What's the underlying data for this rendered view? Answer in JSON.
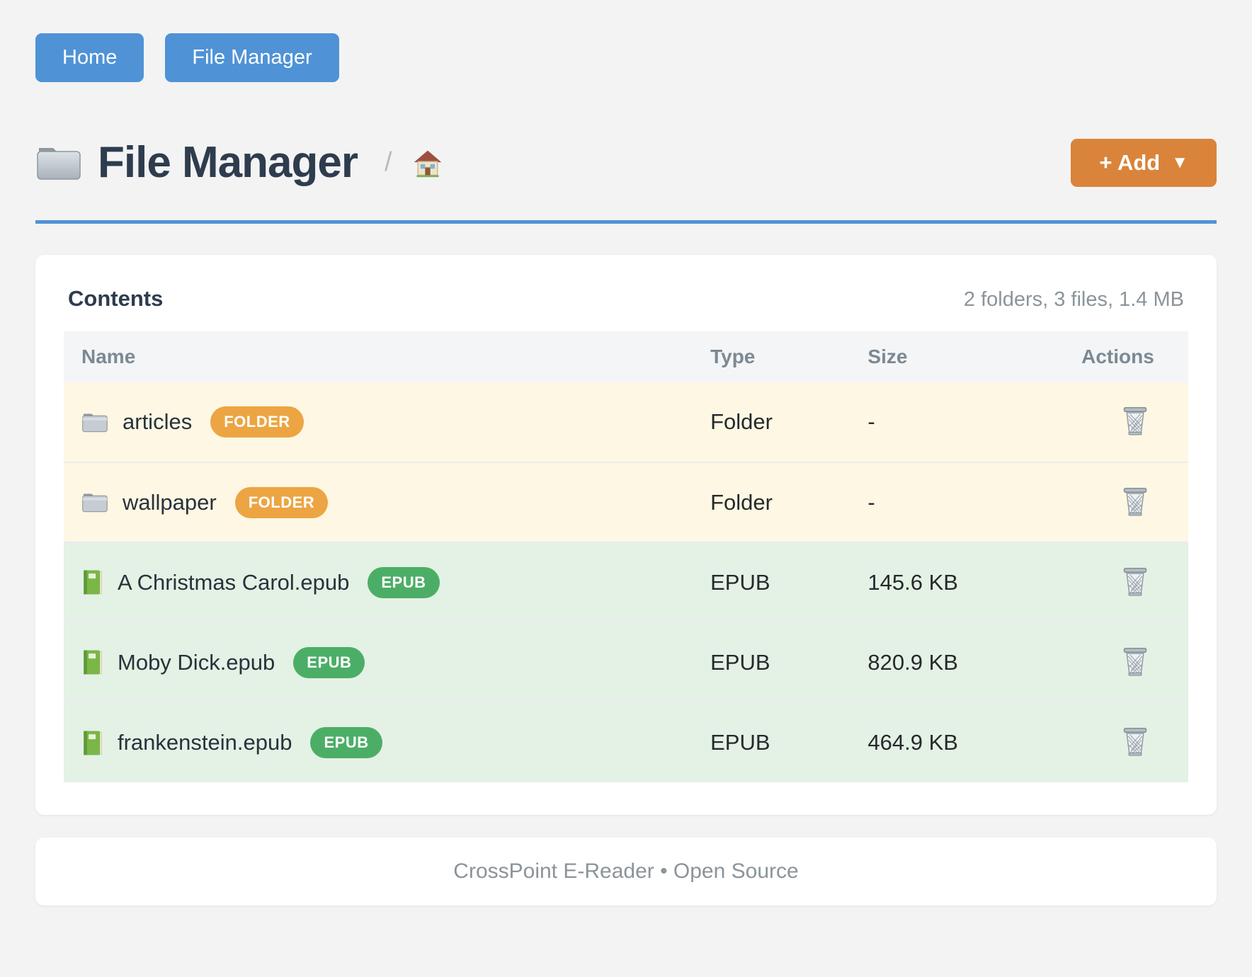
{
  "nav": {
    "buttons": [
      {
        "label": "Home"
      },
      {
        "label": "File Manager"
      }
    ]
  },
  "header": {
    "title": "File Manager",
    "title_icon": "folder-icon",
    "breadcrumb_separator": "/",
    "breadcrumb_home_icon": "house-icon",
    "add_button": {
      "label": "+ Add",
      "caret": "▼"
    }
  },
  "card": {
    "title": "Contents",
    "summary": "2 folders, 3 files, 1.4 MB",
    "table": {
      "columns": [
        "Name",
        "Type",
        "Size",
        "Actions"
      ],
      "rows": [
        {
          "kind": "folder",
          "icon": "folder-icon",
          "name": "articles",
          "badge": "FOLDER",
          "type": "Folder",
          "size": "-",
          "action_icon": "trash-icon"
        },
        {
          "kind": "folder",
          "icon": "folder-icon",
          "name": "wallpaper",
          "badge": "FOLDER",
          "type": "Folder",
          "size": "-",
          "action_icon": "trash-icon"
        },
        {
          "kind": "epub",
          "icon": "book-icon",
          "name": "A Christmas Carol.epub",
          "badge": "EPUB",
          "type": "EPUB",
          "size": "145.6 KB",
          "action_icon": "trash-icon"
        },
        {
          "kind": "epub",
          "icon": "book-icon",
          "name": "Moby Dick.epub",
          "badge": "EPUB",
          "type": "EPUB",
          "size": "820.9 KB",
          "action_icon": "trash-icon"
        },
        {
          "kind": "epub",
          "icon": "book-icon",
          "name": "frankenstein.epub",
          "badge": "EPUB",
          "type": "EPUB",
          "size": "464.9 KB",
          "action_icon": "trash-icon"
        }
      ]
    }
  },
  "footer": {
    "text": "CrossPoint E-Reader • Open Source"
  },
  "colors": {
    "page_bg": "#f3f3f4",
    "accent_blue": "#4f93d6",
    "accent_orange": "#d9843a",
    "badge_folder": "#eca542",
    "badge_epub": "#4cae66",
    "row_folder_bg": "#fdf7e3",
    "row_epub_bg": "#e4f1e5",
    "table_header_bg": "#f3f5f7",
    "heading": "#2e3c4e",
    "muted": "#8a949b"
  }
}
